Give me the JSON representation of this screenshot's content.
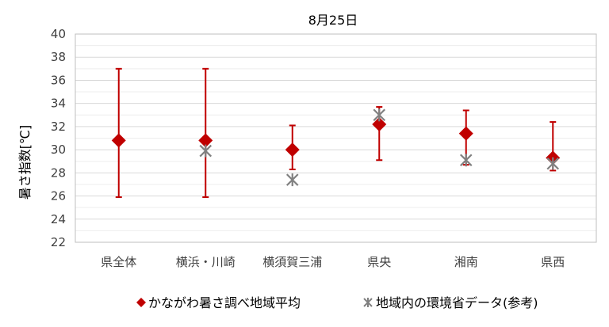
{
  "chart_data": {
    "type": "scatter",
    "title": "8月25日",
    "ylabel": "暑さ指数[℃]",
    "xlabel": "",
    "ylim": [
      22,
      40
    ],
    "yticks": [
      22,
      24,
      26,
      28,
      30,
      32,
      34,
      36,
      38,
      40
    ],
    "ytick_labels": [
      "22",
      "24",
      "26",
      "28",
      "30",
      "32",
      "34",
      "36",
      "38",
      "40"
    ],
    "minor_grid_step": 1,
    "grid": true,
    "legend_position": "bottom",
    "categories": [
      "県全体",
      "横浜・川崎",
      "横須賀三浦",
      "県央",
      "湘南",
      "県西"
    ],
    "series": [
      {
        "name": "かながわ暑さ調べ地域平均",
        "marker": "diamond",
        "color": "#C00000",
        "values": [
          30.8,
          30.8,
          30.0,
          32.2,
          31.4,
          29.3
        ],
        "error_low": [
          25.9,
          25.9,
          28.3,
          29.1,
          28.7,
          28.2
        ],
        "error_high": [
          37.0,
          37.0,
          32.1,
          33.7,
          33.4,
          32.4
        ]
      },
      {
        "name": "地域内の環境省データ(参考)",
        "marker": "star",
        "color": "#808080",
        "values": [
          null,
          29.9,
          27.4,
          33.0,
          29.1,
          28.8
        ]
      }
    ]
  }
}
